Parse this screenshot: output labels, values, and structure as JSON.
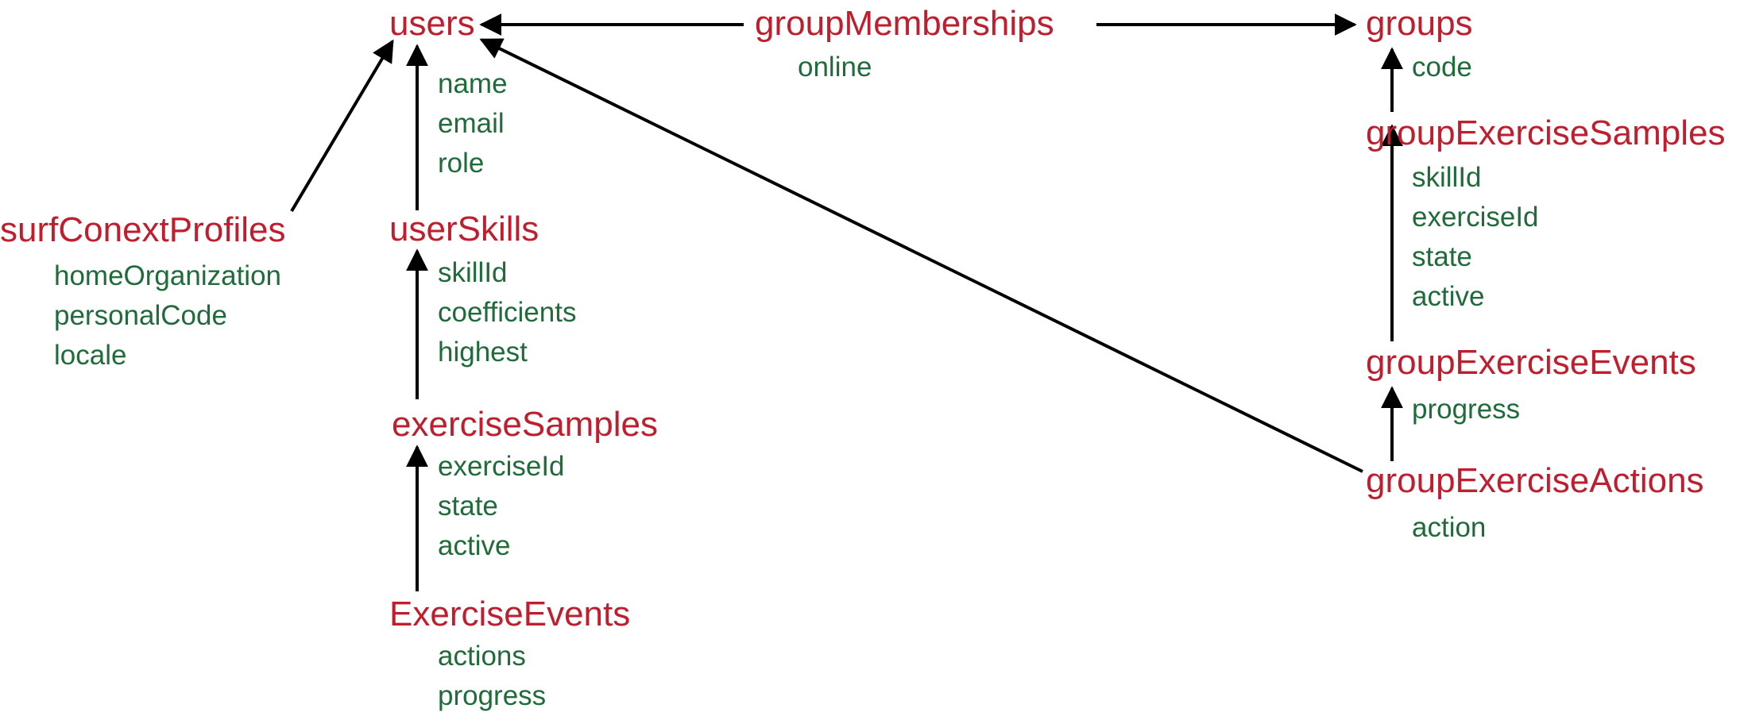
{
  "colors": {
    "entity": "#bf1e2e",
    "field": "#1f6b3a",
    "arrow": "#000000"
  },
  "entities": [
    {
      "id": "users",
      "name": "users",
      "fields": [
        "name",
        "email",
        "role"
      ]
    },
    {
      "id": "groupMemberships",
      "name": "groupMemberships",
      "fields": [
        "online"
      ]
    },
    {
      "id": "groups",
      "name": "groups",
      "fields": [
        "code"
      ]
    },
    {
      "id": "surfConextProfiles",
      "name": "surfConextProfiles",
      "fields": [
        "homeOrganization",
        "personalCode",
        "locale"
      ]
    },
    {
      "id": "userSkills",
      "name": "userSkills",
      "fields": [
        "skillId",
        "coefficients",
        "highest"
      ]
    },
    {
      "id": "exerciseSamples",
      "name": "exerciseSamples",
      "fields": [
        "exerciseId",
        "state",
        "active"
      ]
    },
    {
      "id": "exerciseEvents",
      "name": "ExerciseEvents",
      "fields": [
        "actions",
        "progress"
      ]
    },
    {
      "id": "groupExerciseSamples",
      "name": "groupExerciseSamples",
      "fields": [
        "skillId",
        "exerciseId",
        "state",
        "active"
      ]
    },
    {
      "id": "groupExerciseEvents",
      "name": "groupExerciseEvents",
      "fields": [
        "progress"
      ]
    },
    {
      "id": "groupExerciseActions",
      "name": "groupExerciseActions",
      "fields": [
        "action"
      ]
    }
  ],
  "relations": [
    {
      "from": "groupMemberships",
      "to": "users"
    },
    {
      "from": "groupMemberships",
      "to": "groups"
    },
    {
      "from": "surfConextProfiles",
      "to": "users"
    },
    {
      "from": "userSkills",
      "to": "users"
    },
    {
      "from": "exerciseSamples",
      "to": "userSkills"
    },
    {
      "from": "exerciseEvents",
      "to": "exerciseSamples"
    },
    {
      "from": "groupExerciseSamples",
      "to": "groups"
    },
    {
      "from": "groupExerciseEvents",
      "to": "groupExerciseSamples"
    },
    {
      "from": "groupExerciseActions",
      "to": "groupExerciseEvents"
    },
    {
      "from": "groupExerciseActions",
      "to": "users"
    }
  ]
}
